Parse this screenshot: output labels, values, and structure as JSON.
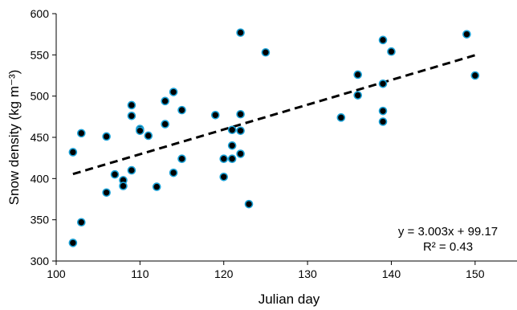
{
  "chart_data": {
    "type": "scatter",
    "xlabel": "Julian day",
    "ylabel": "Snow density (kg m⁻³)",
    "xlim": [
      100,
      155
    ],
    "ylim": [
      300,
      600
    ],
    "x_ticks": [
      100,
      110,
      120,
      130,
      140,
      150
    ],
    "y_ticks": [
      300,
      350,
      400,
      450,
      500,
      550,
      600
    ],
    "grid": false,
    "marker_fill": "#000000",
    "marker_edge": "#1ba1d6",
    "trendline": {
      "style": "dashed",
      "color": "#000000",
      "slope": 3.003,
      "intercept": 99.17,
      "x_range": [
        102,
        150
      ]
    },
    "annotations": [
      "y = 3.003x + 99.17",
      "R² = 0.43"
    ],
    "points": [
      {
        "x": 102,
        "y": 432
      },
      {
        "x": 102,
        "y": 322
      },
      {
        "x": 103,
        "y": 455
      },
      {
        "x": 103,
        "y": 347
      },
      {
        "x": 106,
        "y": 451
      },
      {
        "x": 106,
        "y": 383
      },
      {
        "x": 107,
        "y": 405
      },
      {
        "x": 108,
        "y": 398
      },
      {
        "x": 108,
        "y": 391
      },
      {
        "x": 109,
        "y": 489
      },
      {
        "x": 109,
        "y": 476
      },
      {
        "x": 109,
        "y": 410
      },
      {
        "x": 110,
        "y": 460
      },
      {
        "x": 110,
        "y": 458
      },
      {
        "x": 111,
        "y": 452
      },
      {
        "x": 112,
        "y": 390
      },
      {
        "x": 113,
        "y": 494
      },
      {
        "x": 113,
        "y": 466
      },
      {
        "x": 114,
        "y": 505
      },
      {
        "x": 114,
        "y": 407
      },
      {
        "x": 115,
        "y": 483
      },
      {
        "x": 115,
        "y": 424
      },
      {
        "x": 119,
        "y": 477
      },
      {
        "x": 120,
        "y": 424
      },
      {
        "x": 120,
        "y": 402
      },
      {
        "x": 121,
        "y": 459
      },
      {
        "x": 121,
        "y": 440
      },
      {
        "x": 121,
        "y": 424
      },
      {
        "x": 122,
        "y": 577
      },
      {
        "x": 122,
        "y": 478
      },
      {
        "x": 122,
        "y": 458
      },
      {
        "x": 122,
        "y": 430
      },
      {
        "x": 123,
        "y": 369
      },
      {
        "x": 125,
        "y": 553
      },
      {
        "x": 134,
        "y": 474
      },
      {
        "x": 136,
        "y": 526
      },
      {
        "x": 136,
        "y": 501
      },
      {
        "x": 139,
        "y": 568
      },
      {
        "x": 139,
        "y": 515
      },
      {
        "x": 139,
        "y": 482
      },
      {
        "x": 139,
        "y": 469
      },
      {
        "x": 140,
        "y": 554
      },
      {
        "x": 149,
        "y": 575
      },
      {
        "x": 150,
        "y": 525
      }
    ]
  }
}
